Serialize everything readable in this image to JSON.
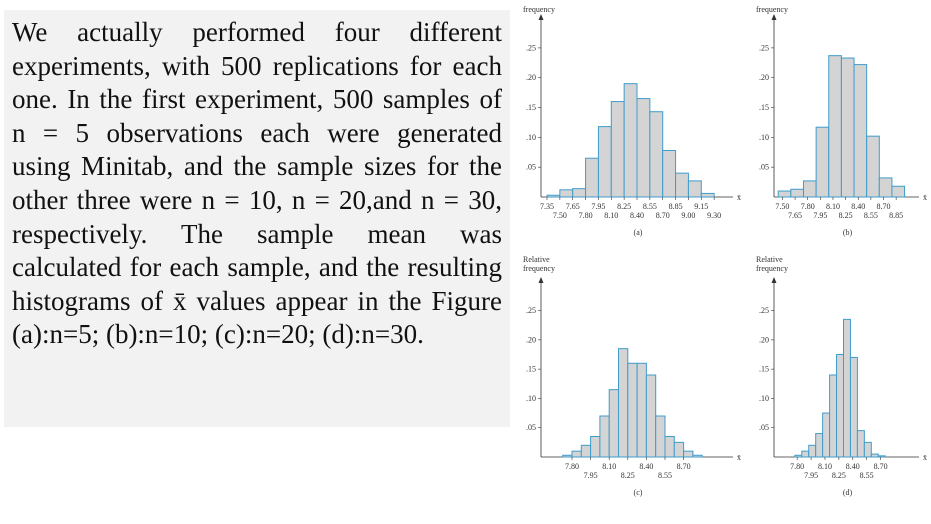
{
  "text": "We actually performed four different experiments, with 500 replications for each one. In the first experiment, 500 samples of n = 5 observations each were generated using Minitab, and the sample sizes for the other three were n = 10, n = 20,and n = 30, respectively. The sample mean was calculated for each sample, and the resulting histograms of x̄ values appear in the Figure (a):n=5; (b):n=10; (c):n=20; (d):n=30.",
  "chart_data": [
    {
      "type": "histogram",
      "ylabel": [
        "frequency"
      ],
      "xlabel": "x̄",
      "caption": "(a)",
      "color": "#d4d4d4",
      "edge_color": "#3f9ccb",
      "bins": [
        7.35,
        7.5,
        7.65,
        7.8,
        7.95,
        8.1,
        8.25,
        8.4,
        8.55,
        8.7,
        8.85,
        9.0,
        9.15,
        9.3
      ],
      "values": [
        0.003,
        0.012,
        0.014,
        0.065,
        0.118,
        0.16,
        0.19,
        0.165,
        0.143,
        0.078,
        0.04,
        0.027,
        0.006
      ],
      "xlim": [
        7.28,
        9.45
      ],
      "ylim": [
        0,
        0.28
      ],
      "xticks": [
        7.35,
        {
          "value": 7.5,
          "label": "7.50"
        },
        7.65,
        {
          "value": 7.8,
          "label": "7.80"
        },
        7.95,
        {
          "value": 8.1,
          "label": "8.10"
        },
        8.25,
        {
          "value": 8.4,
          "label": "8.40"
        },
        8.55,
        {
          "value": 8.7,
          "label": "8.70"
        },
        8.85,
        {
          "value": 9.0,
          "label": "9.00"
        },
        9.15,
        {
          "value": 9.3,
          "label": "9.30"
        }
      ],
      "yticks": [
        {
          "value": 0.05,
          "label": ".05"
        },
        {
          "value": 0.1,
          "label": ".10"
        },
        {
          "value": 0.15,
          "label": ".15"
        },
        {
          "value": 0.2,
          "label": ".20"
        },
        {
          "value": 0.25,
          "label": ".25"
        }
      ]
    },
    {
      "type": "histogram",
      "ylabel": [
        "frequency"
      ],
      "xlabel": "x̄",
      "caption": "(b)",
      "color": "#d4d4d4",
      "edge_color": "#3f9ccb",
      "bins": [
        7.45,
        7.6,
        7.75,
        7.9,
        8.05,
        8.2,
        8.35,
        8.5,
        8.65,
        8.8,
        8.95
      ],
      "values": [
        0.01,
        0.013,
        0.027,
        0.117,
        0.237,
        0.233,
        0.222,
        0.102,
        0.032,
        0.018
      ],
      "xlim": [
        7.4,
        9.05
      ],
      "ylim": [
        0,
        0.28
      ],
      "xticks": [
        {
          "value": 7.5,
          "label": "7.50"
        },
        7.65,
        {
          "value": 7.8,
          "label": "7.80"
        },
        7.95,
        {
          "value": 8.1,
          "label": "8.10"
        },
        8.25,
        {
          "value": 8.4,
          "label": "8.40"
        },
        8.55,
        {
          "value": 8.7,
          "label": "8.70"
        },
        8.85
      ],
      "yticks": [
        {
          "value": 0.05,
          "label": ".05"
        },
        {
          "value": 0.1,
          "label": ".10"
        },
        {
          "value": 0.15,
          "label": ".15"
        },
        {
          "value": 0.2,
          "label": ".20"
        },
        {
          "value": 0.25,
          "label": ".25"
        }
      ]
    },
    {
      "type": "histogram",
      "ylabel": [
        "Relative",
        "frequency"
      ],
      "xlabel": "x̄",
      "caption": "(c)",
      "color": "#d4d4d4",
      "edge_color": "#3f9ccb",
      "bins": [
        7.725,
        7.8,
        7.875,
        7.95,
        8.025,
        8.1,
        8.175,
        8.25,
        8.325,
        8.4,
        8.475,
        8.55,
        8.625,
        8.7,
        8.775,
        8.85
      ],
      "values": [
        0.003,
        0.01,
        0.02,
        0.035,
        0.07,
        0.115,
        0.185,
        0.16,
        0.16,
        0.14,
        0.07,
        0.035,
        0.025,
        0.01,
        0.003
      ],
      "xlim": [
        7.55,
        9.05
      ],
      "ylim": [
        0,
        0.28
      ],
      "xticks": [
        {
          "value": 7.8,
          "label": "7.80"
        },
        7.95,
        {
          "value": 8.1,
          "label": "8.10"
        },
        8.25,
        {
          "value": 8.4,
          "label": "8.40"
        },
        8.55,
        {
          "value": 8.7,
          "label": "8.70"
        }
      ],
      "yticks": [
        {
          "value": 0.05,
          "label": ".05"
        },
        {
          "value": 0.1,
          "label": ".10"
        },
        {
          "value": 0.15,
          "label": ".15"
        },
        {
          "value": 0.2,
          "label": ".20"
        },
        {
          "value": 0.25,
          "label": ".25"
        }
      ]
    },
    {
      "type": "histogram",
      "ylabel": [
        "Relative",
        "frequency"
      ],
      "xlabel": "x̄",
      "caption": "(d)",
      "color": "#d4d4d4",
      "edge_color": "#3f9ccb",
      "bins": [
        7.775,
        7.85,
        7.925,
        8.0,
        8.075,
        8.15,
        8.225,
        8.3,
        8.375,
        8.45,
        8.525,
        8.6,
        8.675,
        8.75
      ],
      "values": [
        0.003,
        0.01,
        0.02,
        0.04,
        0.075,
        0.14,
        0.175,
        0.235,
        0.17,
        0.045,
        0.025,
        0.005,
        0.002
      ],
      "xlim": [
        7.55,
        9.05
      ],
      "ylim": [
        0,
        0.28
      ],
      "xticks": [
        {
          "value": 7.8,
          "label": "7.80"
        },
        7.95,
        {
          "value": 8.1,
          "label": "8.10"
        },
        8.25,
        {
          "value": 8.4,
          "label": "8.40"
        },
        8.55,
        {
          "value": 8.7,
          "label": "8.70"
        }
      ],
      "yticks": [
        {
          "value": 0.05,
          "label": ".05"
        },
        {
          "value": 0.1,
          "label": ".10"
        },
        {
          "value": 0.15,
          "label": ".15"
        },
        {
          "value": 0.2,
          "label": ".20"
        },
        {
          "value": 0.25,
          "label": ".25"
        }
      ]
    }
  ]
}
